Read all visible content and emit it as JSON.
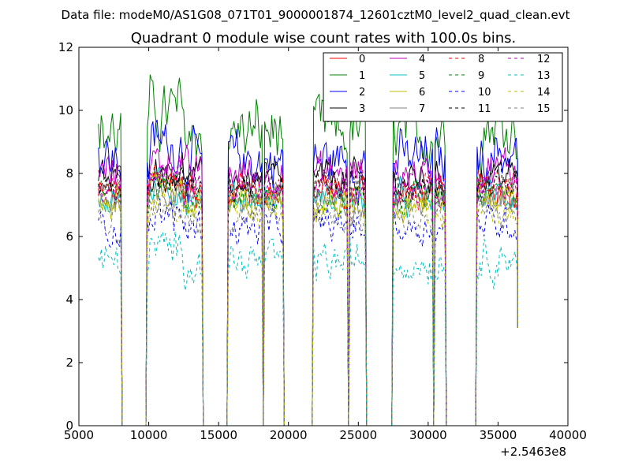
{
  "chart_data": {
    "type": "line",
    "suptitle": "Data file: modeM0/AS1G08_071T01_9000001874_12601cztM0_level2_quad_clean.evt",
    "title": "Quadrant 0 module wise count rates with 100.0s bins.",
    "xlabel": "",
    "ylabel": "",
    "x_offset_label": "+2.5463e8",
    "xlim": [
      5000,
      40000
    ],
    "ylim": [
      0,
      12
    ],
    "xticks": [
      5000,
      10000,
      15000,
      20000,
      25000,
      30000,
      35000,
      40000
    ],
    "yticks": [
      0,
      2,
      4,
      6,
      8,
      10,
      12
    ],
    "grid": false,
    "legend_position": "top-right",
    "legend_columns": 4,
    "x_range": [
      6400,
      36400
    ],
    "bin": 100,
    "gaps": [
      [
        8100,
        9800
      ],
      [
        13900,
        15600
      ],
      [
        18200,
        18200
      ],
      [
        19700,
        21700
      ],
      [
        24300,
        24300
      ],
      [
        25600,
        27400
      ],
      [
        30400,
        30400
      ],
      [
        31300,
        33400
      ]
    ],
    "series": [
      {
        "name": "0",
        "mean": 7.4,
        "amp": 0.45,
        "color": "#ff0000",
        "dash": "solid"
      },
      {
        "name": "1",
        "mean": 9.3,
        "amp": 0.9,
        "color": "#008000",
        "dash": "solid"
      },
      {
        "name": "2",
        "mean": 8.4,
        "amp": 0.8,
        "color": "#0000ff",
        "dash": "solid"
      },
      {
        "name": "3",
        "mean": 7.8,
        "amp": 0.5,
        "color": "#000000",
        "dash": "solid"
      },
      {
        "name": "4",
        "mean": 8.0,
        "amp": 0.55,
        "color": "#bf00bf",
        "dash": "solid"
      },
      {
        "name": "5",
        "mean": 7.2,
        "amp": 0.45,
        "color": "#00bfbf",
        "dash": "solid"
      },
      {
        "name": "6",
        "mean": 7.0,
        "amp": 0.45,
        "color": "#bfbf00",
        "dash": "solid"
      },
      {
        "name": "7",
        "mean": 7.2,
        "amp": 0.45,
        "color": "#808080",
        "dash": "solid"
      },
      {
        "name": "8",
        "mean": 7.5,
        "amp": 0.45,
        "color": "#ff0000",
        "dash": "dashed"
      },
      {
        "name": "9",
        "mean": 7.3,
        "amp": 0.45,
        "color": "#008000",
        "dash": "dashed"
      },
      {
        "name": "10",
        "mean": 6.3,
        "amp": 0.5,
        "color": "#0000ff",
        "dash": "dashed"
      },
      {
        "name": "11",
        "mean": 7.6,
        "amp": 0.45,
        "color": "#000000",
        "dash": "dashed"
      },
      {
        "name": "12",
        "mean": 7.5,
        "amp": 0.45,
        "color": "#bf00bf",
        "dash": "dashed"
      },
      {
        "name": "13",
        "mean": 5.2,
        "amp": 0.55,
        "color": "#00bfbf",
        "dash": "dashed"
      },
      {
        "name": "14",
        "mean": 6.8,
        "amp": 0.45,
        "color": "#bfbf00",
        "dash": "dashed"
      },
      {
        "name": "15",
        "mean": 6.6,
        "amp": 0.45,
        "color": "#808080",
        "dash": "dashed"
      }
    ]
  }
}
